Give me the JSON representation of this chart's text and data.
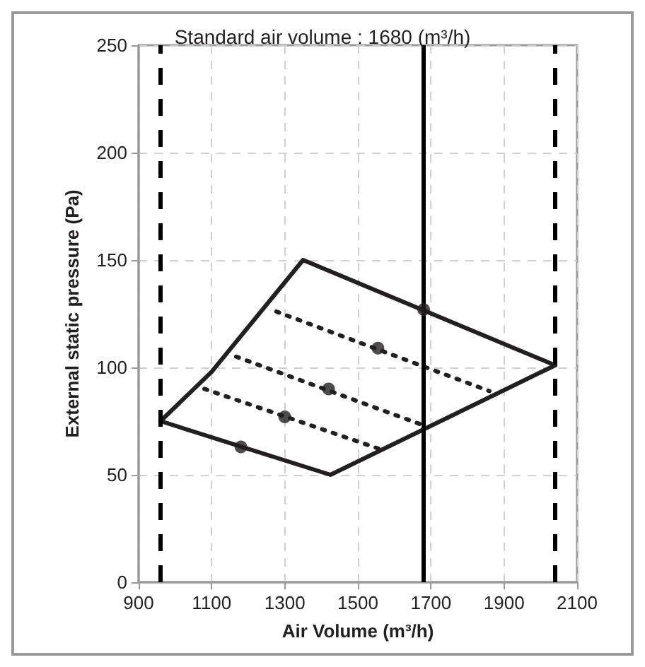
{
  "chart_data": {
    "type": "line",
    "title": "Standard air volume : 1680 (m³/h)",
    "xlabel": "Air Volume (m³/h)",
    "ylabel": "External static pressure (Pa)",
    "xlim": [
      900,
      2100
    ],
    "xticks": [
      900,
      1100,
      1300,
      1500,
      1700,
      1900,
      2100
    ],
    "ylim": [
      0,
      250
    ],
    "yticks": [
      0,
      50,
      100,
      150,
      200,
      250
    ],
    "grid": true,
    "series": [
      {
        "color": "#231f20",
        "line_style": "solid",
        "marker": "none",
        "x": [
          960,
          1100,
          1350,
          2040
        ],
        "values": [
          75,
          98,
          150,
          101
        ]
      },
      {
        "color": "#231f20",
        "line_style": "solid",
        "marker": "none",
        "x": [
          960,
          1425,
          2040
        ],
        "values": [
          75,
          50,
          101
        ]
      },
      {
        "type": "line",
        "color": "#231f20",
        "line_style": "dotted",
        "marker": "none",
        "x": [
          1277,
          1860
        ],
        "values": [
          126,
          89
        ]
      },
      {
        "type": "line",
        "color": "#231f20",
        "line_style": "dotted",
        "marker": "none",
        "x": [
          1167,
          1680
        ],
        "values": [
          105,
          73
        ]
      },
      {
        "type": "line",
        "color": "#231f20",
        "line_style": "dotted",
        "marker": "none",
        "x": [
          1080,
          1560
        ],
        "values": [
          90,
          62
        ]
      },
      {
        "type": "scatter",
        "color": "#231f20",
        "marker": "circle",
        "x": [
          1180,
          1300,
          1420,
          1555,
          1680
        ],
        "values": [
          63,
          77,
          90,
          109,
          127
        ]
      }
    ],
    "ref_lines": [
      {
        "axis": "x",
        "value": 960,
        "color": "#000000",
        "line_style": "dashed"
      },
      {
        "axis": "x",
        "value": 2040,
        "color": "#000000",
        "line_style": "dashed"
      },
      {
        "axis": "x",
        "value": 1680,
        "color": "#000000",
        "line_style": "solid"
      }
    ]
  }
}
